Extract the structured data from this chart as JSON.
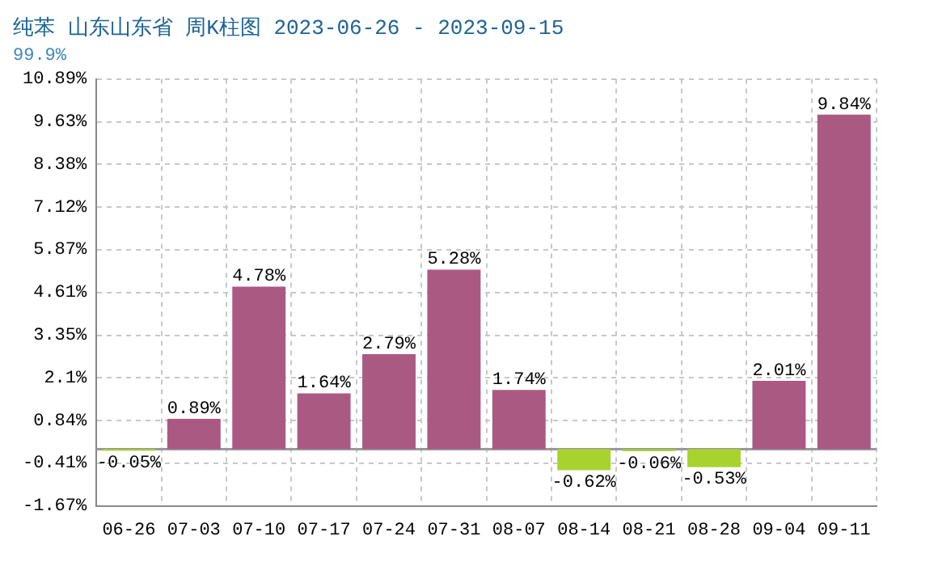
{
  "chart_data": {
    "type": "bar",
    "title": "纯苯 山东山东省 周K柱图 2023-06-26 - 2023-09-15",
    "subtitle": "99.9%",
    "categories": [
      "06-26",
      "07-03",
      "07-10",
      "07-17",
      "07-24",
      "07-31",
      "08-07",
      "08-14",
      "08-21",
      "08-28",
      "09-04",
      "09-11"
    ],
    "values": [
      -0.05,
      0.89,
      4.78,
      1.64,
      2.79,
      5.28,
      1.74,
      -0.62,
      -0.06,
      -0.53,
      2.01,
      9.84
    ],
    "colors": [
      "#a8d32f",
      "#aa5a82",
      "#aa5a82",
      "#aa5a82",
      "#aa5a82",
      "#aa5a82",
      "#aa5a82",
      "#a8d32f",
      "#a8d32f",
      "#a8d32f",
      "#aa5a82",
      "#aa5a82"
    ],
    "value_labels": [
      "-0.05%",
      "0.89%",
      "4.78%",
      "1.64%",
      "2.79%",
      "5.28%",
      "1.74%",
      "-0.62%",
      "-0.06%",
      "-0.53%",
      "2.01%",
      "9.84%"
    ],
    "ylim": [
      -1.67,
      10.89
    ],
    "yticks": [
      {
        "value": -1.67,
        "label": "-1.67%"
      },
      {
        "value": -0.41,
        "label": "-0.41%"
      },
      {
        "value": 0.84,
        "label": "0.84%"
      },
      {
        "value": 2.1,
        "label": "2.1%"
      },
      {
        "value": 3.35,
        "label": "3.35%"
      },
      {
        "value": 4.61,
        "label": "4.61%"
      },
      {
        "value": 5.87,
        "label": "5.87%"
      },
      {
        "value": 7.12,
        "label": "7.12%"
      },
      {
        "value": 8.38,
        "label": "8.38%"
      },
      {
        "value": 9.63,
        "label": "9.63%"
      },
      {
        "value": 10.89,
        "label": "10.89%"
      }
    ],
    "ref_lines": [
      {
        "axis": "y",
        "value": 0,
        "color": "#999999"
      }
    ],
    "grid": true,
    "legend": false
  }
}
